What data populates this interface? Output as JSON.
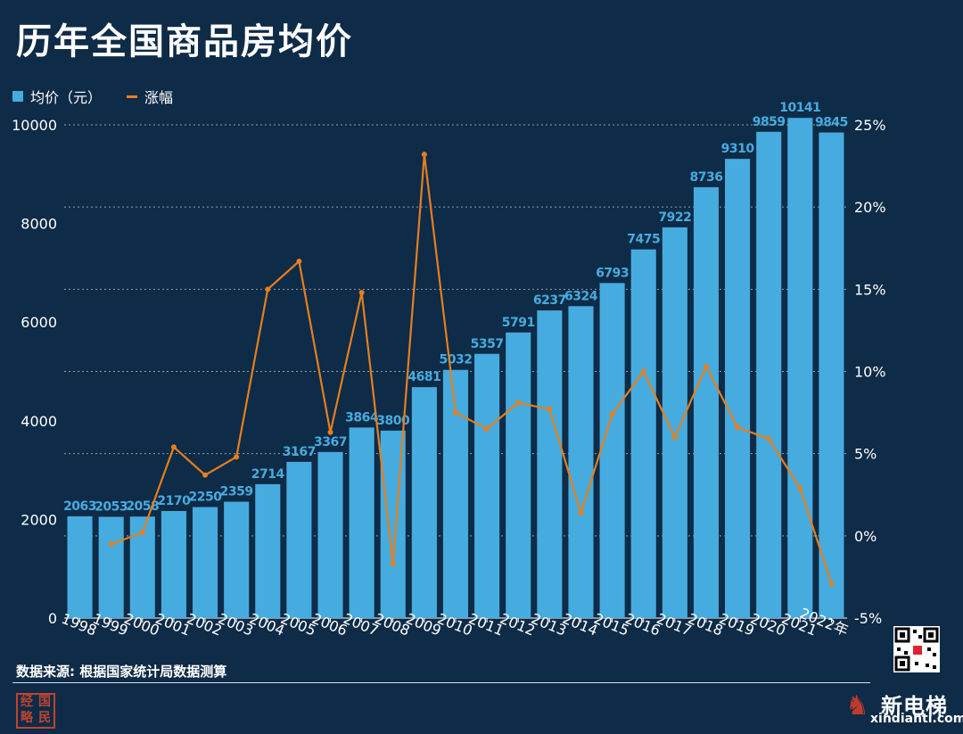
{
  "title": "历年全国商品房均价",
  "legend": {
    "bar_label": "均价（元）",
    "line_label": "涨幅"
  },
  "source": "数据来源: 根据国家统计局数据测算",
  "stamp": [
    "经",
    "国",
    "略",
    "民"
  ],
  "brand": {
    "name": "新电梯",
    "url": "xindianti.com"
  },
  "colors": {
    "background": "#0e2b47",
    "bar": "#46acdf",
    "line": "#e57f1e",
    "bar_label": "#46acdf"
  },
  "chart_data": {
    "type": "bar",
    "title": "历年全国商品房均价",
    "categories": [
      "1998",
      "1999",
      "2000",
      "2001",
      "2002",
      "2003",
      "2004",
      "2005",
      "2006",
      "2007",
      "2008",
      "2009",
      "2010",
      "2011",
      "2012",
      "2013",
      "2014",
      "2015",
      "2016",
      "2017",
      "2018",
      "2019",
      "2020",
      "2021",
      "2022年"
    ],
    "series": [
      {
        "name": "均价（元）",
        "type": "bar",
        "axis": "left",
        "values": [
          2063,
          2053,
          2058,
          2170,
          2250,
          2359,
          2714,
          3167,
          3367,
          3864,
          3800,
          4681,
          5032,
          5357,
          5791,
          6237,
          6324,
          6793,
          7475,
          7922,
          8736,
          9310,
          9859,
          10141,
          9845
        ]
      },
      {
        "name": "涨幅",
        "type": "line",
        "axis": "right",
        "unit": "%",
        "values": [
          null,
          -0.5,
          0.2,
          5.4,
          3.7,
          4.8,
          15.0,
          16.7,
          6.3,
          14.8,
          -1.7,
          23.2,
          7.5,
          6.5,
          8.1,
          7.7,
          1.4,
          7.4,
          10.0,
          6.0,
          10.3,
          6.6,
          5.9,
          2.9,
          -2.9
        ]
      }
    ],
    "y_left": {
      "ylim": [
        0,
        10000
      ],
      "ticks": [
        "0",
        "2000",
        "4000",
        "6000",
        "8000",
        "10000"
      ]
    },
    "y_right": {
      "ylim": [
        -5,
        25
      ],
      "ticks": [
        "-5%",
        "0%",
        "5%",
        "10%",
        "15%",
        "20%",
        "25%"
      ]
    },
    "grid": "dotted-horizontal",
    "legend_position": "top-left"
  }
}
